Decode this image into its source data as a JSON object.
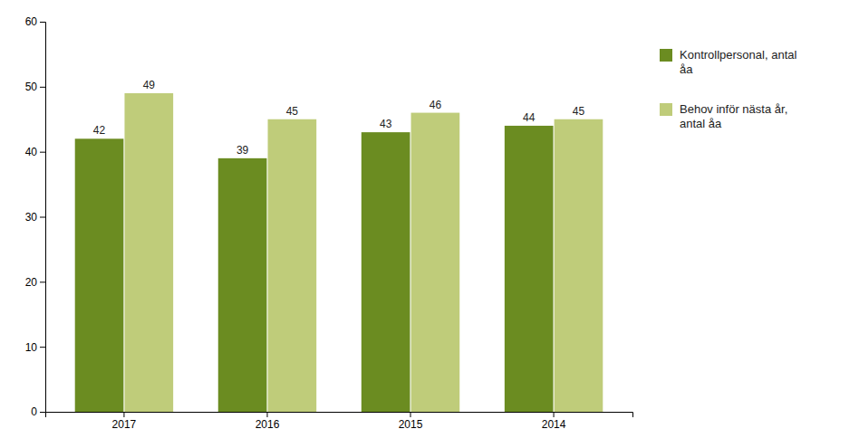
{
  "chart_data": {
    "type": "bar",
    "categories": [
      "2017",
      "2016",
      "2015",
      "2014"
    ],
    "series": [
      {
        "name": "Kontrollpersonal, antal\nåa",
        "color": "#6B8C21",
        "values": [
          42,
          39,
          43,
          44
        ]
      },
      {
        "name": "Behov inför nästa år,\nantal åa",
        "color": "#BFCC7A",
        "values": [
          49,
          45,
          46,
          45
        ]
      }
    ],
    "ylim": [
      0,
      60
    ],
    "yticks": [
      0,
      10,
      20,
      30,
      40,
      50,
      60
    ],
    "grid": false,
    "legend": "right",
    "data_labels": true
  }
}
